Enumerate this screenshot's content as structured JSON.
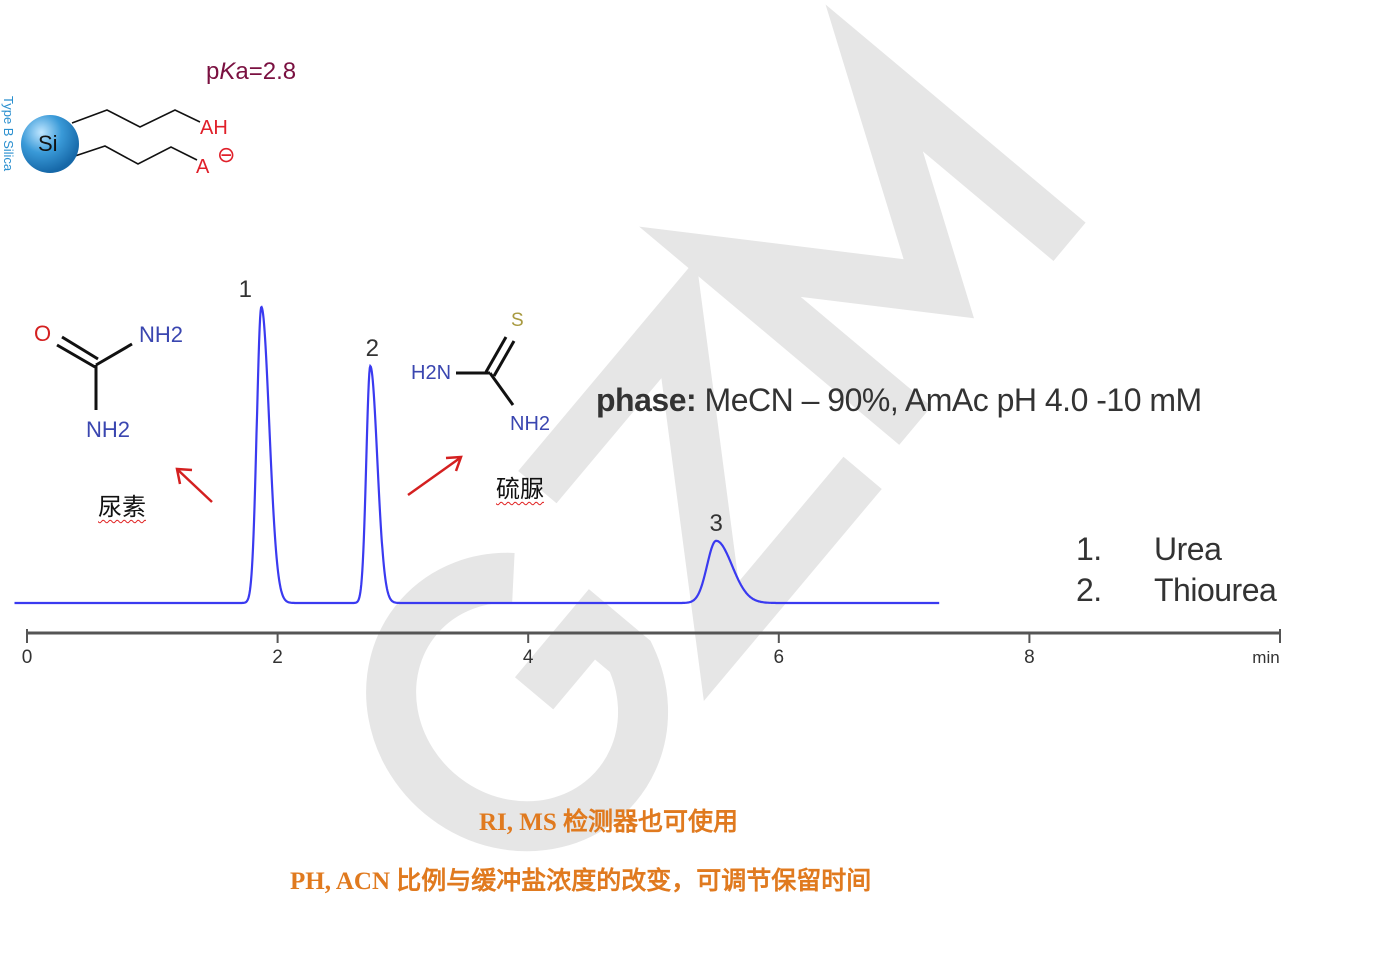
{
  "watermark": "GZM",
  "stationary_phase": {
    "vertical_label": "Type B Silica",
    "particle_label": "Si",
    "acid_group": "AH",
    "anion_group": "A",
    "charge_symbol": "⊖",
    "pka_prefix": "p",
    "pka_k": "K",
    "pka_rest": "a=2.8",
    "colors": {
      "particle": "#2a8fcf",
      "group": "#e0202a",
      "pka": "#7a1040"
    }
  },
  "urea_structure": {
    "o": "O",
    "nh2_top": "NH2",
    "nh2_bottom": "NH2",
    "name_cn": "尿素"
  },
  "thiourea_structure": {
    "s": "S",
    "h2n": "H2N",
    "nh2": "NH2",
    "name_cn": "硫脲"
  },
  "mobile_phase": {
    "label": "phase:",
    "value": "MeCN – 90%, AmAc pH 4.0 -10 mM"
  },
  "legend": [
    {
      "num": "1.",
      "name": "Urea"
    },
    {
      "num": "2.",
      "name": "Thiourea"
    }
  ],
  "notes": [
    "RI, MS 检测器也可使用",
    "PH, ACN 比例与缓冲盐浓度的改变，可调节保留时间"
  ],
  "chart_data": {
    "type": "line",
    "title": "",
    "xlabel": "min",
    "ylabel": "",
    "xlim": [
      0,
      10
    ],
    "xticks": [
      0,
      2,
      4,
      6,
      8
    ],
    "xtick_labels": [
      "0",
      "2",
      "4",
      "6",
      "8"
    ],
    "trace_range": [
      -0.1,
      7.28
    ],
    "grid": false,
    "line_color": "#3a3af0",
    "peaks": [
      {
        "label": "1",
        "retention_time": 1.87,
        "relative_height": 1.0,
        "width": 0.045
      },
      {
        "label": "2",
        "retention_time": 2.74,
        "relative_height": 0.8,
        "width": 0.04
      },
      {
        "label": "3",
        "retention_time": 5.5,
        "relative_height": 0.21,
        "width": 0.09
      }
    ]
  }
}
